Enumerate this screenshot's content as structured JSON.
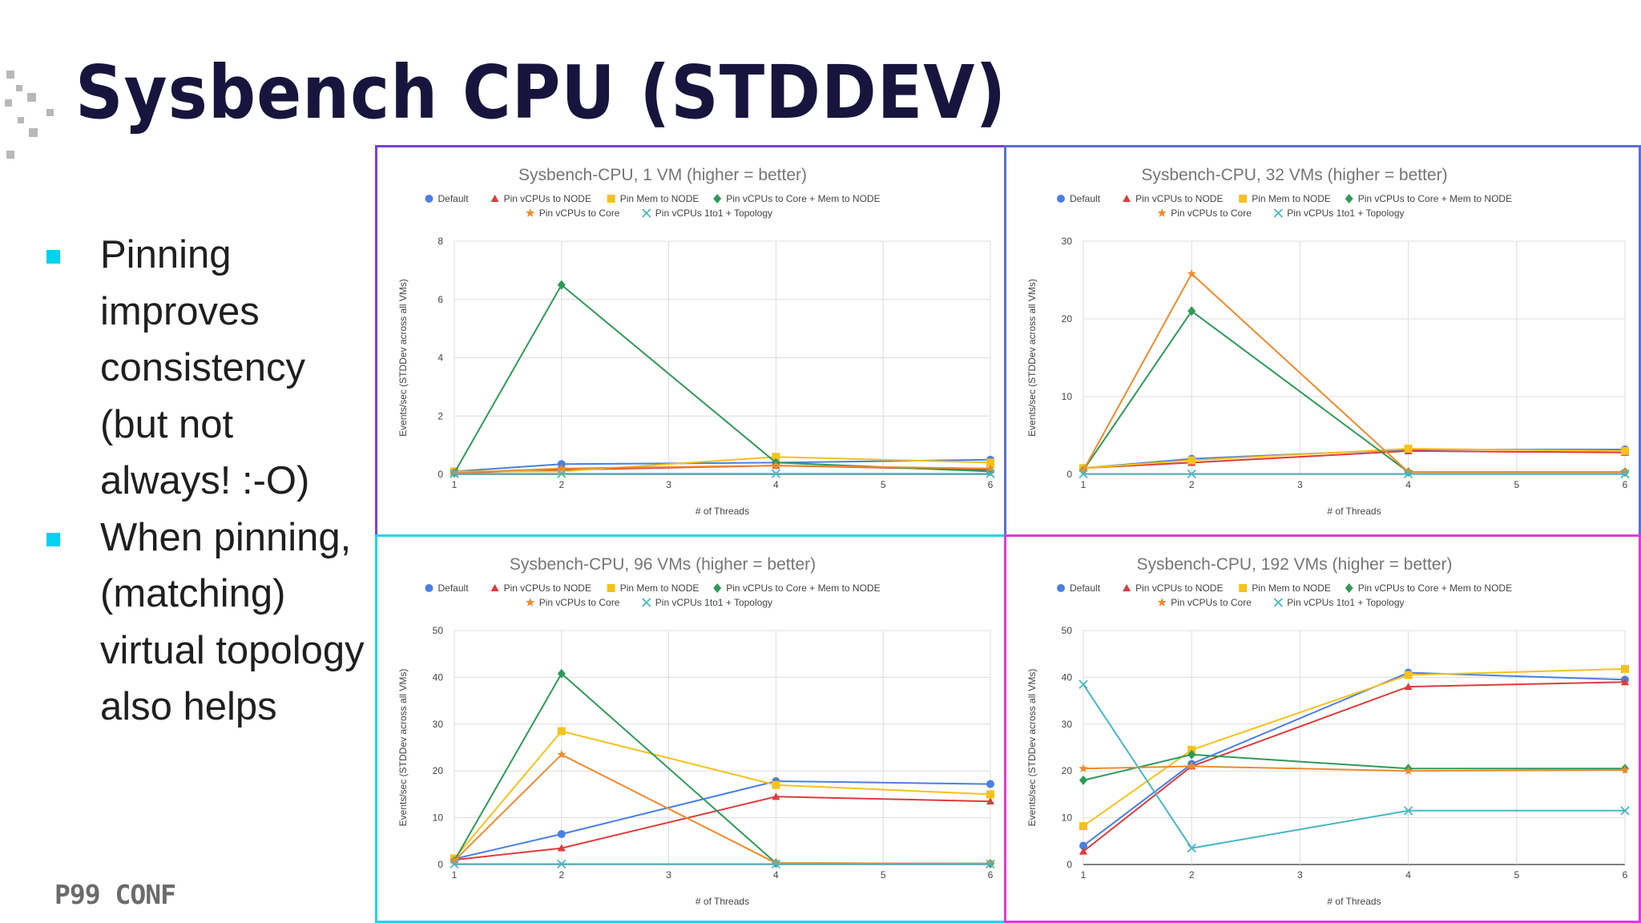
{
  "slide": {
    "title": "Sysbench CPU (STDDEV)",
    "bullets": [
      "Pinning improves consistency (but not always! :-O)",
      "When pinning, (matching) virtual topology also helps"
    ],
    "logo": "P99 CONF"
  },
  "colors": {
    "title": "#17153d",
    "bullet_marker": "#00d2f0",
    "panel_borders": [
      "#7b3fd9",
      "#5b6fd2",
      "#22d5ea",
      "#e23bd1"
    ],
    "series": [
      "#4a7fe0",
      "#de3b3b",
      "#f5c21b",
      "#2e9a58",
      "#f08a2c",
      "#49b6c4"
    ]
  },
  "legend_markers": [
    "circle",
    "triangle",
    "square",
    "diamond",
    "star",
    "cross"
  ],
  "chart_data": [
    {
      "type": "line",
      "title": "Sysbench-CPU, 1 VM (higher = better)",
      "xlabel": "# of Threads",
      "ylabel": "Events/sec (STDDev across all VMs)",
      "x": [
        1,
        2,
        4,
        6
      ],
      "xticks": [
        1,
        2,
        3,
        4,
        5,
        6
      ],
      "yticks": [
        0,
        2,
        4,
        6,
        8
      ],
      "ylim": [
        0,
        8
      ],
      "legend_position": "top",
      "series": [
        {
          "name": "Default",
          "values": [
            0.1,
            0.35,
            0.4,
            0.5
          ]
        },
        {
          "name": "Pin vCPUs to NODE",
          "values": [
            0.05,
            0.15,
            0.3,
            0.15
          ]
        },
        {
          "name": "Pin Mem to NODE",
          "values": [
            0.1,
            0.1,
            0.6,
            0.4
          ]
        },
        {
          "name": "Pin vCPUs to Core + Mem to NODE",
          "values": [
            0.05,
            6.5,
            0.4,
            0.1
          ]
        },
        {
          "name": "Pin vCPUs to Core",
          "values": [
            0.05,
            0.2,
            0.3,
            0.2
          ]
        },
        {
          "name": "Pin vCPUs 1to1 + Topology",
          "values": [
            0.02,
            0.02,
            0.02,
            0.02
          ]
        }
      ]
    },
    {
      "type": "line",
      "title": "Sysbench-CPU, 32 VMs (higher = better)",
      "xlabel": "# of Threads",
      "ylabel": "Events/sec (STDDev across all VMs)",
      "x": [
        1,
        2,
        4,
        6
      ],
      "xticks": [
        1,
        2,
        3,
        4,
        5,
        6
      ],
      "yticks": [
        0,
        10,
        20,
        30
      ],
      "ylim": [
        0,
        30
      ],
      "legend_position": "top",
      "series": [
        {
          "name": "Default",
          "values": [
            0.8,
            2.0,
            3.2,
            3.2
          ]
        },
        {
          "name": "Pin vCPUs to NODE",
          "values": [
            0.8,
            1.5,
            3.0,
            2.8
          ]
        },
        {
          "name": "Pin Mem to NODE",
          "values": [
            0.8,
            1.8,
            3.3,
            3.0
          ]
        },
        {
          "name": "Pin vCPUs to Core + Mem to NODE",
          "values": [
            0.5,
            21,
            0.3,
            0.3
          ]
        },
        {
          "name": "Pin vCPUs to Core",
          "values": [
            0.5,
            25.8,
            0.3,
            0.3
          ]
        },
        {
          "name": "Pin vCPUs 1to1 + Topology",
          "values": [
            0.05,
            0.05,
            0.05,
            0.05
          ]
        }
      ]
    },
    {
      "type": "line",
      "title": "Sysbench-CPU, 96 VMs (higher = better)",
      "xlabel": "# of Threads",
      "ylabel": "Events/sec (STDDev across all VMs)",
      "x": [
        1,
        2,
        4,
        6
      ],
      "xticks": [
        1,
        2,
        3,
        4,
        5,
        6
      ],
      "yticks": [
        0,
        10,
        20,
        30,
        40,
        50
      ],
      "ylim": [
        0,
        50
      ],
      "legend_position": "top",
      "series": [
        {
          "name": "Default",
          "values": [
            1.2,
            6.5,
            17.8,
            17.2
          ]
        },
        {
          "name": "Pin vCPUs to NODE",
          "values": [
            1.0,
            3.5,
            14.5,
            13.5
          ]
        },
        {
          "name": "Pin Mem to NODE",
          "values": [
            1.3,
            28.5,
            17.0,
            15.0
          ]
        },
        {
          "name": "Pin vCPUs to Core + Mem to NODE",
          "values": [
            0.8,
            40.8,
            0.3,
            0.2
          ]
        },
        {
          "name": "Pin vCPUs to Core",
          "values": [
            0.8,
            23.5,
            0.3,
            0.2
          ]
        },
        {
          "name": "Pin vCPUs 1to1 + Topology",
          "values": [
            0.1,
            0.1,
            0.1,
            0.1
          ]
        }
      ]
    },
    {
      "type": "line",
      "title": "Sysbench-CPU, 192 VMs (higher = better)",
      "xlabel": "# of Threads",
      "ylabel": "Events/sec (STDDev across all VMs)",
      "x": [
        1,
        2,
        4,
        6
      ],
      "xticks": [
        1,
        2,
        3,
        4,
        5,
        6
      ],
      "yticks": [
        0,
        10,
        20,
        30,
        40,
        50
      ],
      "ylim": [
        0,
        50
      ],
      "legend_position": "top",
      "series": [
        {
          "name": "Default",
          "values": [
            4.0,
            21.5,
            41.0,
            39.5
          ]
        },
        {
          "name": "Pin vCPUs to NODE",
          "values": [
            2.8,
            21.0,
            38.0,
            39.0
          ]
        },
        {
          "name": "Pin Mem to NODE",
          "values": [
            8.2,
            24.5,
            40.5,
            41.8
          ]
        },
        {
          "name": "Pin vCPUs to Core + Mem to NODE",
          "values": [
            18.0,
            23.5,
            20.5,
            20.5
          ]
        },
        {
          "name": "Pin vCPUs to Core",
          "values": [
            20.5,
            21.0,
            20.0,
            20.2
          ]
        },
        {
          "name": "Pin vCPUs 1to1 + Topology",
          "values": [
            38.5,
            3.5,
            11.5,
            11.5
          ]
        }
      ]
    }
  ]
}
